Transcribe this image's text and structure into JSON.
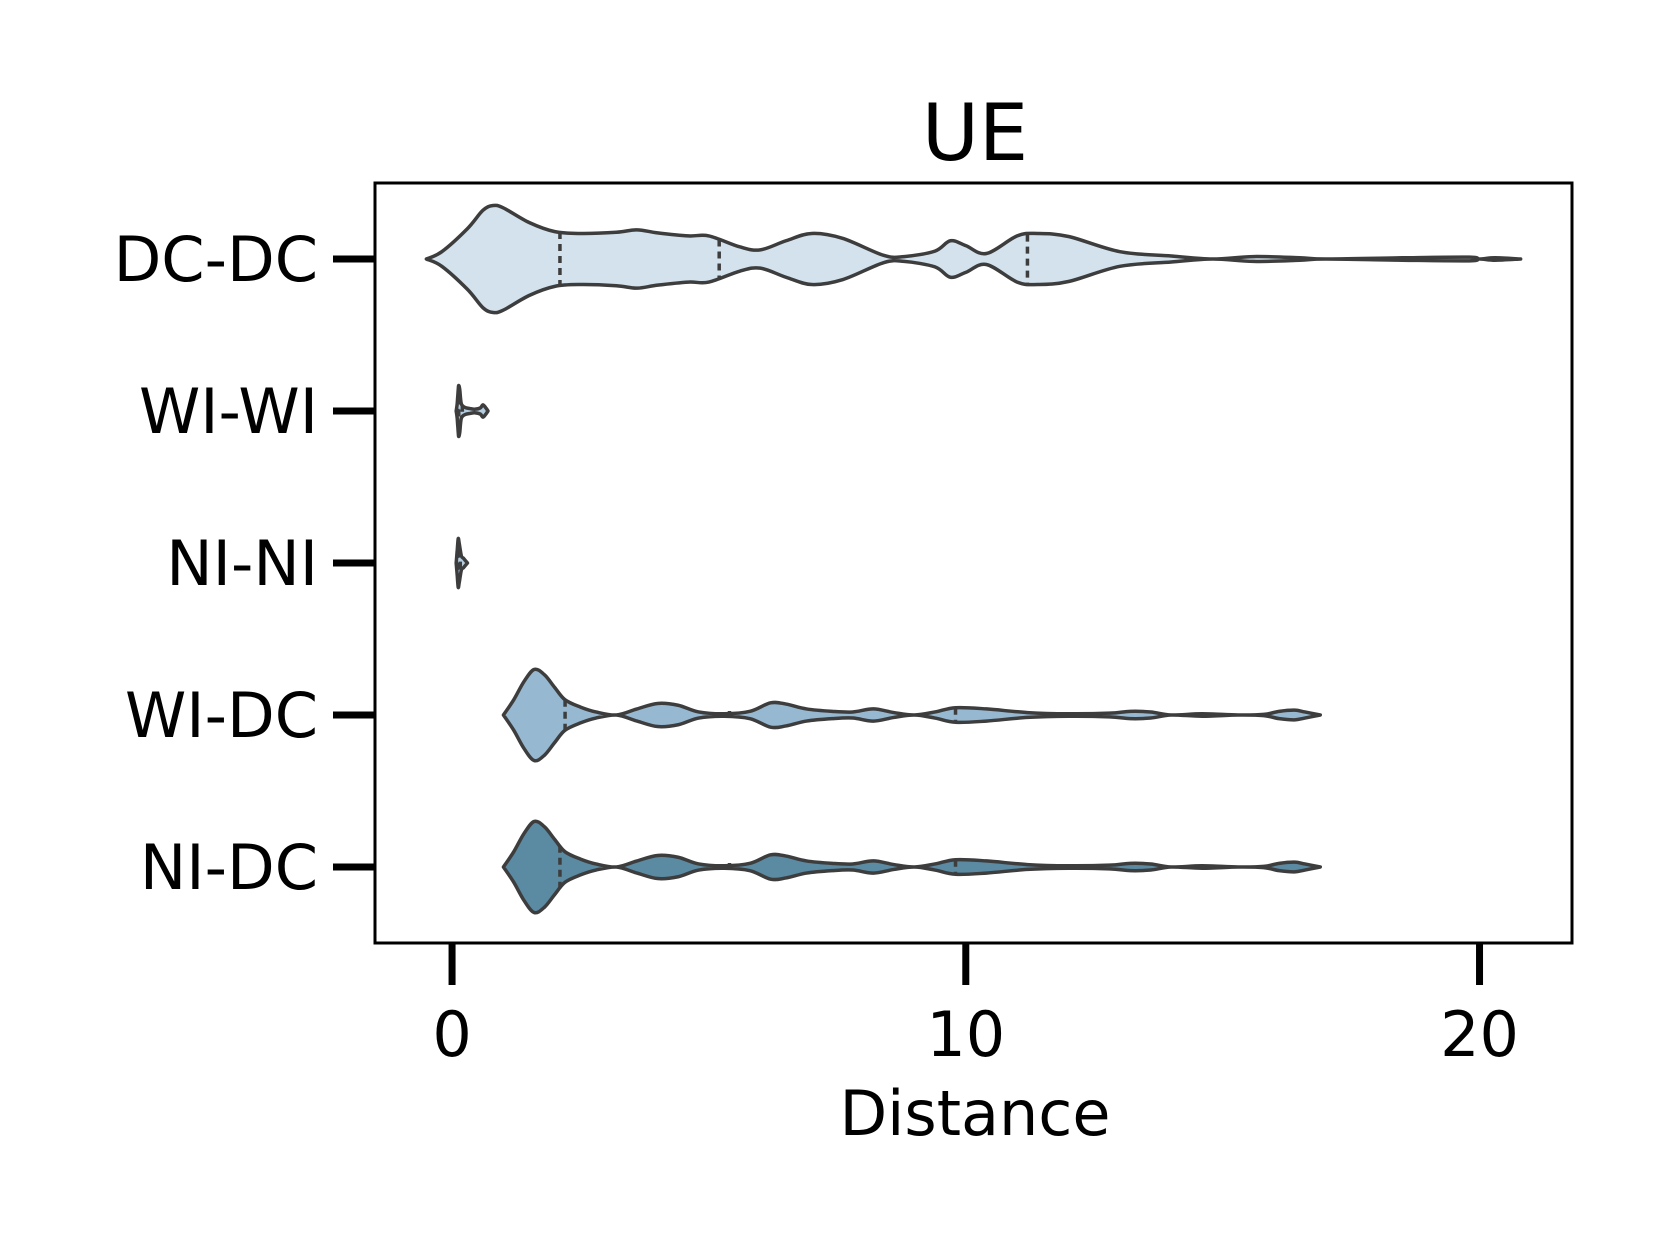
{
  "chart_data": {
    "type": "violin",
    "title": "UE",
    "xlabel": "Distance",
    "ylabel": "",
    "xlim": [
      -1.5,
      21.8
    ],
    "x_ticks": [
      0,
      10,
      20
    ],
    "orientation": "horizontal",
    "grid": false,
    "legend": "none",
    "categories": [
      "DC-DC",
      "WI-WI",
      "NI-NI",
      "WI-DC",
      "NI-DC"
    ],
    "colors": {
      "DC-DC": "#d3e2ec",
      "WI-WI": "#b5cde0",
      "NI-NI": "#b5cde0",
      "WI-DC": "#97b8d1",
      "NI-DC": "#5b8aa3",
      "outline": "#3d3d3d"
    },
    "series": [
      {
        "category": "DC-DC",
        "profile": [
          [
            -0.5,
            0
          ],
          [
            -0.2,
            0.12
          ],
          [
            0.3,
            0.5
          ],
          [
            0.6,
            0.8
          ],
          [
            0.8,
            0.88
          ],
          [
            1.0,
            0.84
          ],
          [
            1.5,
            0.6
          ],
          [
            2.0,
            0.45
          ],
          [
            2.5,
            0.42
          ],
          [
            3.2,
            0.44
          ],
          [
            3.6,
            0.48
          ],
          [
            4.0,
            0.43
          ],
          [
            4.6,
            0.38
          ],
          [
            5.0,
            0.38
          ],
          [
            5.6,
            0.2
          ],
          [
            6.0,
            0.15
          ],
          [
            6.5,
            0.3
          ],
          [
            7.0,
            0.42
          ],
          [
            7.6,
            0.34
          ],
          [
            8.4,
            0.06
          ],
          [
            8.8,
            0.04
          ],
          [
            9.4,
            0.13
          ],
          [
            9.7,
            0.3
          ],
          [
            10.0,
            0.22
          ],
          [
            10.4,
            0.09
          ],
          [
            11.0,
            0.38
          ],
          [
            11.4,
            0.42
          ],
          [
            12.0,
            0.37
          ],
          [
            13.0,
            0.12
          ],
          [
            14.0,
            0.05
          ],
          [
            14.8,
            0.0
          ],
          [
            15.6,
            0.04
          ],
          [
            16.5,
            0.02
          ],
          [
            17.0,
            0.0
          ],
          [
            18.5,
            0.02
          ],
          [
            19.8,
            0.03
          ],
          [
            20.0,
            0.0
          ],
          [
            20.3,
            0.02
          ],
          [
            20.8,
            0.0
          ]
        ],
        "quartiles": [
          2.1,
          5.2,
          11.2
        ]
      },
      {
        "category": "WI-WI",
        "profile": [
          [
            0.08,
            0
          ],
          [
            0.1,
            0.12
          ],
          [
            0.12,
            0.35
          ],
          [
            0.13,
            0.42
          ],
          [
            0.15,
            0.35
          ],
          [
            0.18,
            0.12
          ],
          [
            0.25,
            0.06
          ],
          [
            0.35,
            0.04
          ],
          [
            0.45,
            0.03
          ],
          [
            0.55,
            0.05
          ],
          [
            0.6,
            0.1
          ],
          [
            0.65,
            0.06
          ],
          [
            0.7,
            0.0
          ]
        ],
        "quartiles": [
          0.11,
          0.13,
          0.2
        ]
      },
      {
        "category": "NI-NI",
        "profile": [
          [
            0.08,
            0
          ],
          [
            0.1,
            0.2
          ],
          [
            0.12,
            0.4
          ],
          [
            0.14,
            0.32
          ],
          [
            0.18,
            0.12
          ],
          [
            0.22,
            0.08
          ],
          [
            0.26,
            0.04
          ],
          [
            0.3,
            0.0
          ]
        ],
        "quartiles": [
          0.1,
          0.12,
          0.16
        ]
      },
      {
        "category": "WI-DC",
        "profile": [
          [
            1.0,
            0
          ],
          [
            1.2,
            0.25
          ],
          [
            1.4,
            0.55
          ],
          [
            1.6,
            0.75
          ],
          [
            1.8,
            0.66
          ],
          [
            2.0,
            0.45
          ],
          [
            2.2,
            0.25
          ],
          [
            2.5,
            0.13
          ],
          [
            2.8,
            0.05
          ],
          [
            3.2,
            0.0
          ],
          [
            3.6,
            0.1
          ],
          [
            4.0,
            0.19
          ],
          [
            4.4,
            0.16
          ],
          [
            4.8,
            0.05
          ],
          [
            5.3,
            0.02
          ],
          [
            5.8,
            0.06
          ],
          [
            6.2,
            0.2
          ],
          [
            6.5,
            0.18
          ],
          [
            6.9,
            0.1
          ],
          [
            7.4,
            0.06
          ],
          [
            7.8,
            0.05
          ],
          [
            8.2,
            0.1
          ],
          [
            8.6,
            0.04
          ],
          [
            9.0,
            0.0
          ],
          [
            9.4,
            0.05
          ],
          [
            9.8,
            0.12
          ],
          [
            10.4,
            0.1
          ],
          [
            11.2,
            0.04
          ],
          [
            12.0,
            0.02
          ],
          [
            12.8,
            0.03
          ],
          [
            13.2,
            0.06
          ],
          [
            13.6,
            0.05
          ],
          [
            14.0,
            0.0
          ],
          [
            14.6,
            0.02
          ],
          [
            15.3,
            0.0
          ],
          [
            15.8,
            0.01
          ],
          [
            16.1,
            0.06
          ],
          [
            16.4,
            0.08
          ],
          [
            16.6,
            0.05
          ],
          [
            16.9,
            0.0
          ]
        ],
        "quartiles": [
          2.2,
          5.4,
          9.8
        ]
      },
      {
        "category": "NI-DC",
        "profile": [
          [
            1.0,
            0
          ],
          [
            1.2,
            0.25
          ],
          [
            1.4,
            0.55
          ],
          [
            1.6,
            0.75
          ],
          [
            1.8,
            0.66
          ],
          [
            2.0,
            0.45
          ],
          [
            2.2,
            0.25
          ],
          [
            2.5,
            0.13
          ],
          [
            2.8,
            0.05
          ],
          [
            3.2,
            0.0
          ],
          [
            3.6,
            0.1
          ],
          [
            4.0,
            0.19
          ],
          [
            4.4,
            0.16
          ],
          [
            4.8,
            0.05
          ],
          [
            5.3,
            0.02
          ],
          [
            5.8,
            0.06
          ],
          [
            6.2,
            0.2
          ],
          [
            6.5,
            0.18
          ],
          [
            6.9,
            0.1
          ],
          [
            7.4,
            0.06
          ],
          [
            7.8,
            0.05
          ],
          [
            8.2,
            0.1
          ],
          [
            8.6,
            0.04
          ],
          [
            9.0,
            0.0
          ],
          [
            9.4,
            0.05
          ],
          [
            9.8,
            0.12
          ],
          [
            10.4,
            0.1
          ],
          [
            11.2,
            0.04
          ],
          [
            12.0,
            0.02
          ],
          [
            12.8,
            0.03
          ],
          [
            13.2,
            0.06
          ],
          [
            13.6,
            0.05
          ],
          [
            14.0,
            0.0
          ],
          [
            14.6,
            0.02
          ],
          [
            15.3,
            0.0
          ],
          [
            15.8,
            0.01
          ],
          [
            16.1,
            0.06
          ],
          [
            16.4,
            0.08
          ],
          [
            16.6,
            0.05
          ],
          [
            16.9,
            0.0
          ]
        ],
        "quartiles": [
          2.1,
          5.4,
          9.8
        ]
      }
    ]
  }
}
